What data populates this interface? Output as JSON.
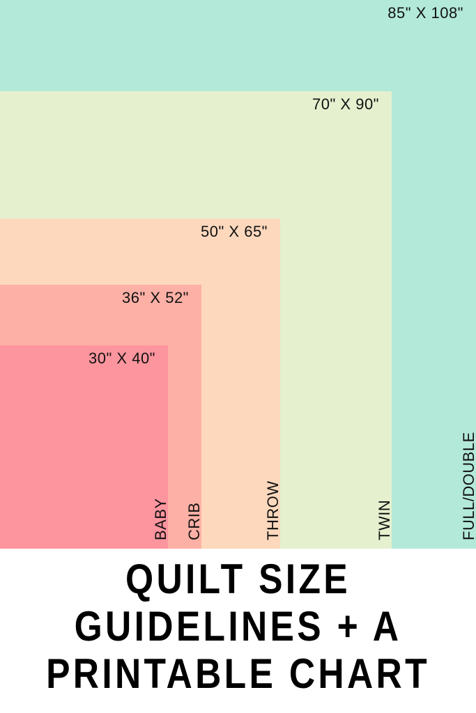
{
  "sizes": [
    {
      "name": "FULL/DOUBLE",
      "dimensions": "85\" X 108\"",
      "width_in": 85,
      "length_in": 108,
      "color": "#b3e9d9"
    },
    {
      "name": "TWIN",
      "dimensions": "70\" X 90\"",
      "width_in": 70,
      "length_in": 90,
      "color": "#e5f0cf"
    },
    {
      "name": "THROW",
      "dimensions": "50\" X 65\"",
      "width_in": 50,
      "length_in": 65,
      "color": "#fdd8bd"
    },
    {
      "name": "CRIB",
      "dimensions": "36\" X 52\"",
      "width_in": 36,
      "length_in": 52,
      "color": "#fdb0a6"
    },
    {
      "name": "BABY",
      "dimensions": "30\" X 40\"",
      "width_in": 30,
      "length_in": 40,
      "color": "#fd959e"
    }
  ],
  "title": {
    "lines": [
      "QUILT SIZE",
      "GUIDELINES + A",
      "PRINTABLE CHART"
    ]
  }
}
